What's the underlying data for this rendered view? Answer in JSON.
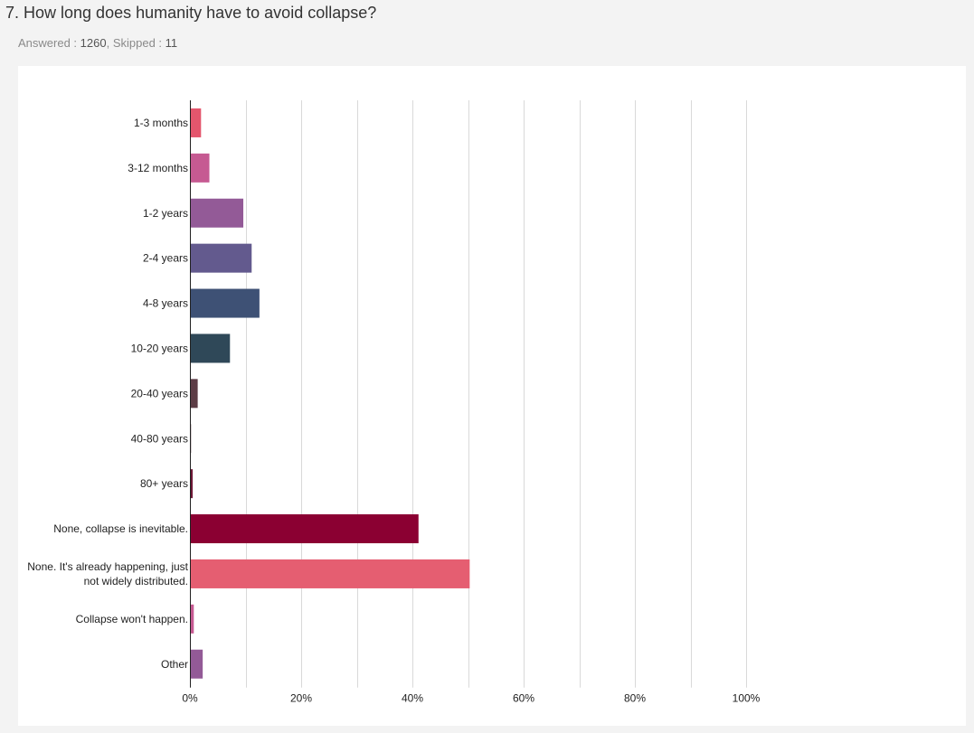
{
  "question": {
    "title": "7. How long does humanity have to avoid collapse?",
    "answered_label": "Answered :",
    "answered_value": "1260",
    "skipped_label": "Skipped :",
    "skipped_value": "11"
  },
  "chart_data": {
    "type": "bar",
    "orientation": "horizontal",
    "title": "",
    "xlabel": "",
    "ylabel": "",
    "xlim": [
      0,
      100
    ],
    "x_ticks": [
      0,
      20,
      40,
      60,
      80,
      100
    ],
    "x_tick_labels": [
      "0%",
      "20%",
      "40%",
      "60%",
      "80%",
      "100%"
    ],
    "grid": true,
    "categories": [
      [
        "1-3 months"
      ],
      [
        "3-12 months"
      ],
      [
        "1-2 years"
      ],
      [
        "2-4 years"
      ],
      [
        "4-8 years"
      ],
      [
        "10-20 years"
      ],
      [
        "20-40 years"
      ],
      [
        "40-80 years"
      ],
      [
        "80+ years"
      ],
      [
        "None, collapse is inevitable."
      ],
      [
        "None. It's already happening, just",
        "not widely distributed."
      ],
      [
        "Collapse won't happen."
      ],
      [
        "Other"
      ]
    ],
    "values": [
      2.0,
      3.5,
      9.6,
      11.1,
      12.5,
      7.2,
      1.4,
      0.2,
      0.5,
      41.1,
      50.3,
      0.7,
      2.3
    ],
    "colors": [
      "#e4566d",
      "#c65a92",
      "#935a97",
      "#635a8e",
      "#3e5175",
      "#2f4858",
      "#5c3c45",
      "#4d2b36",
      "#6d1837",
      "#8b0032",
      "#e55e71",
      "#c65a92",
      "#935a97"
    ]
  }
}
